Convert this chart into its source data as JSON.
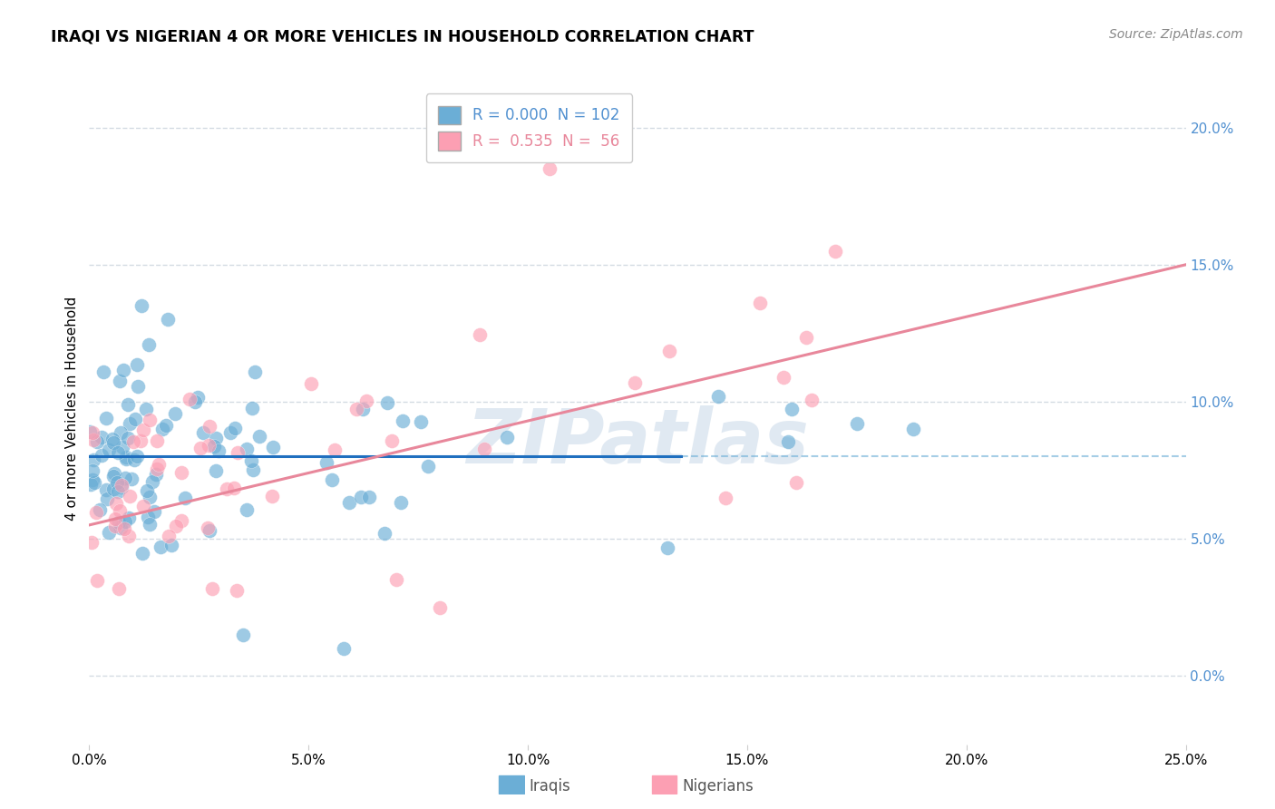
{
  "title": "IRAQI VS NIGERIAN 4 OR MORE VEHICLES IN HOUSEHOLD CORRELATION CHART",
  "source": "Source: ZipAtlas.com",
  "ylabel": "4 or more Vehicles in Household",
  "xlim": [
    0.0,
    25.0
  ],
  "ylim": [
    -2.5,
    22.0
  ],
  "ytick_vals": [
    0.0,
    5.0,
    10.0,
    15.0,
    20.0
  ],
  "xtick_vals": [
    0.0,
    5.0,
    10.0,
    15.0,
    20.0,
    25.0
  ],
  "legend_r_iraqi": "0.000",
  "legend_n_iraqi": "102",
  "legend_r_nigerian": "0.535",
  "legend_n_nigerian": "56",
  "iraqi_color": "#6baed6",
  "nigerian_color": "#fc9fb3",
  "trend_iraqi_color": "#1f6fbf",
  "trend_nigerian_color": "#e8879b",
  "dashed_line_color": "#6baed6",
  "watermark": "ZIPatlas",
  "watermark_color": "#c8d8e8",
  "grid_color": "#d0d8e0",
  "iraqi_trend_y": 8.0,
  "iraqi_trend_x_end": 13.5,
  "nig_line_x0": 0.0,
  "nig_line_y0": 5.5,
  "nig_line_x1": 25.0,
  "nig_line_y1": 15.0
}
